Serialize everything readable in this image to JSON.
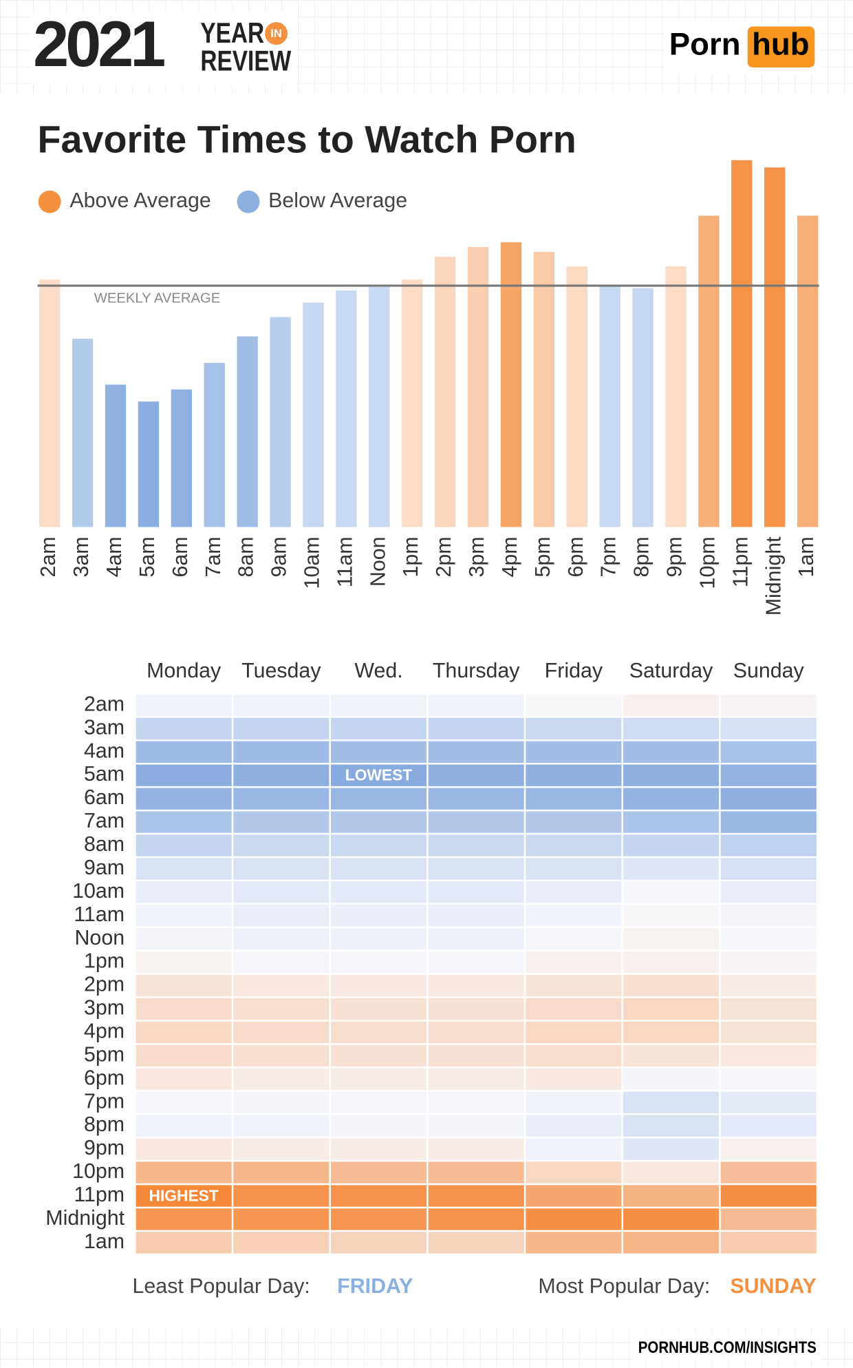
{
  "header": {
    "year": "2021",
    "year_word": "YEAR",
    "in_word": "IN",
    "review_word": "REVIEW",
    "brand_left": "Porn",
    "brand_right": "hub"
  },
  "chart_data": [
    {
      "type": "bar",
      "title": "Favorite Times to Watch Porn",
      "legend": [
        {
          "label": "Above Average",
          "color": "#f5913e"
        },
        {
          "label": "Below Average",
          "color": "#8ab0e0"
        }
      ],
      "categories": [
        "2am",
        "3am",
        "4am",
        "5am",
        "6am",
        "7am",
        "8am",
        "9am",
        "10am",
        "11am",
        "Noon",
        "1pm",
        "2pm",
        "3pm",
        "4pm",
        "5pm",
        "6pm",
        "7pm",
        "8pm",
        "9pm",
        "10pm",
        "11pm",
        "Midnight",
        "1am"
      ],
      "values": [
        102.5,
        78,
        59,
        52,
        57,
        68,
        79,
        87,
        93,
        98,
        99.5,
        102.5,
        112,
        116,
        118,
        114,
        108,
        99.6,
        99,
        108,
        129,
        152,
        149,
        129
      ],
      "colors": [
        "#fbdcc8",
        "#b3cbeb",
        "#8fb1e1",
        "#8aaedf",
        "#8fb1e1",
        "#a6c2e8",
        "#a0bde6",
        "#b7cfec",
        "#c5d8f0",
        "#c8daf1",
        "#c8daf1",
        "#fbdcc6",
        "#fad6bd",
        "#f9cfb0",
        "#f6a566",
        "#f8caa7",
        "#fbdac3",
        "#c8daf1",
        "#c5d8f0",
        "#fbdcc6",
        "#f7af78",
        "#f59448",
        "#f59448",
        "#f7ae76"
      ],
      "reference_line": {
        "value": 100,
        "label": "WEEKLY AVERAGE",
        "color": "#777777"
      },
      "ylim": [
        0,
        155
      ]
    },
    {
      "type": "heatmap",
      "x": [
        "Monday",
        "Tuesday",
        "Wed.",
        "Thursday",
        "Friday",
        "Saturday",
        "Sunday"
      ],
      "y": [
        "2am",
        "3am",
        "4am",
        "5am",
        "6am",
        "7am",
        "8am",
        "9am",
        "10am",
        "11am",
        "Noon",
        "1pm",
        "2pm",
        "3pm",
        "4pm",
        "5pm",
        "6pm",
        "7pm",
        "8pm",
        "9pm",
        "10pm",
        "11pm",
        "Midnight",
        "1am"
      ],
      "values": [
        [
          97,
          97,
          97,
          97,
          101,
          104,
          102
        ],
        [
          80,
          80,
          80,
          80,
          82,
          84,
          86
        ],
        [
          65,
          65,
          66,
          66,
          66,
          66,
          68
        ],
        [
          57,
          58,
          55,
          58,
          58,
          58,
          60
        ],
        [
          60,
          62,
          62,
          62,
          62,
          60,
          58
        ],
        [
          70,
          72,
          72,
          72,
          72,
          70,
          62
        ],
        [
          80,
          82,
          82,
          82,
          82,
          80,
          78
        ],
        [
          88,
          88,
          88,
          88,
          88,
          90,
          86
        ],
        [
          94,
          92,
          92,
          92,
          94,
          99,
          94
        ],
        [
          97,
          94,
          94,
          94,
          97,
          101,
          98
        ],
        [
          98,
          96,
          96,
          96,
          99,
          103,
          99
        ],
        [
          103,
          99,
          99,
          99,
          104,
          104,
          102
        ],
        [
          110,
          108,
          107,
          107,
          110,
          112,
          106
        ],
        [
          114,
          112,
          111,
          111,
          114,
          116,
          110
        ],
        [
          116,
          114,
          113,
          113,
          116,
          116,
          110
        ],
        [
          114,
          112,
          111,
          111,
          113,
          110,
          108
        ],
        [
          108,
          106,
          106,
          106,
          107,
          98,
          99
        ],
        [
          99,
          98,
          99,
          99,
          97,
          88,
          93
        ],
        [
          97,
          97,
          98,
          98,
          94,
          88,
          92
        ],
        [
          108,
          106,
          106,
          106,
          97,
          90,
          104
        ],
        [
          132,
          132,
          130,
          130,
          116,
          108,
          128
        ],
        [
          155,
          150,
          150,
          150,
          140,
          134,
          152
        ],
        [
          148,
          148,
          148,
          150,
          152,
          152,
          130
        ],
        [
          122,
          120,
          118,
          118,
          132,
          133,
          122
        ]
      ],
      "color_scale": {
        "colors": [
          "#87aadf",
          "#f8f8fc",
          "#f5893a"
        ],
        "domain": [
          55,
          100,
          155
        ]
      },
      "annotations": [
        {
          "text": "LOWEST",
          "row": 3,
          "column": 2
        },
        {
          "text": "HIGHEST",
          "row": 21,
          "column": 0
        }
      ]
    }
  ],
  "footer": {
    "least_label": "Least Popular Day:",
    "least_day": "FRIDAY",
    "most_label": "Most Popular Day:",
    "most_day": "SUNDAY",
    "url": "PORNHUB.COM/INSIGHTS"
  }
}
